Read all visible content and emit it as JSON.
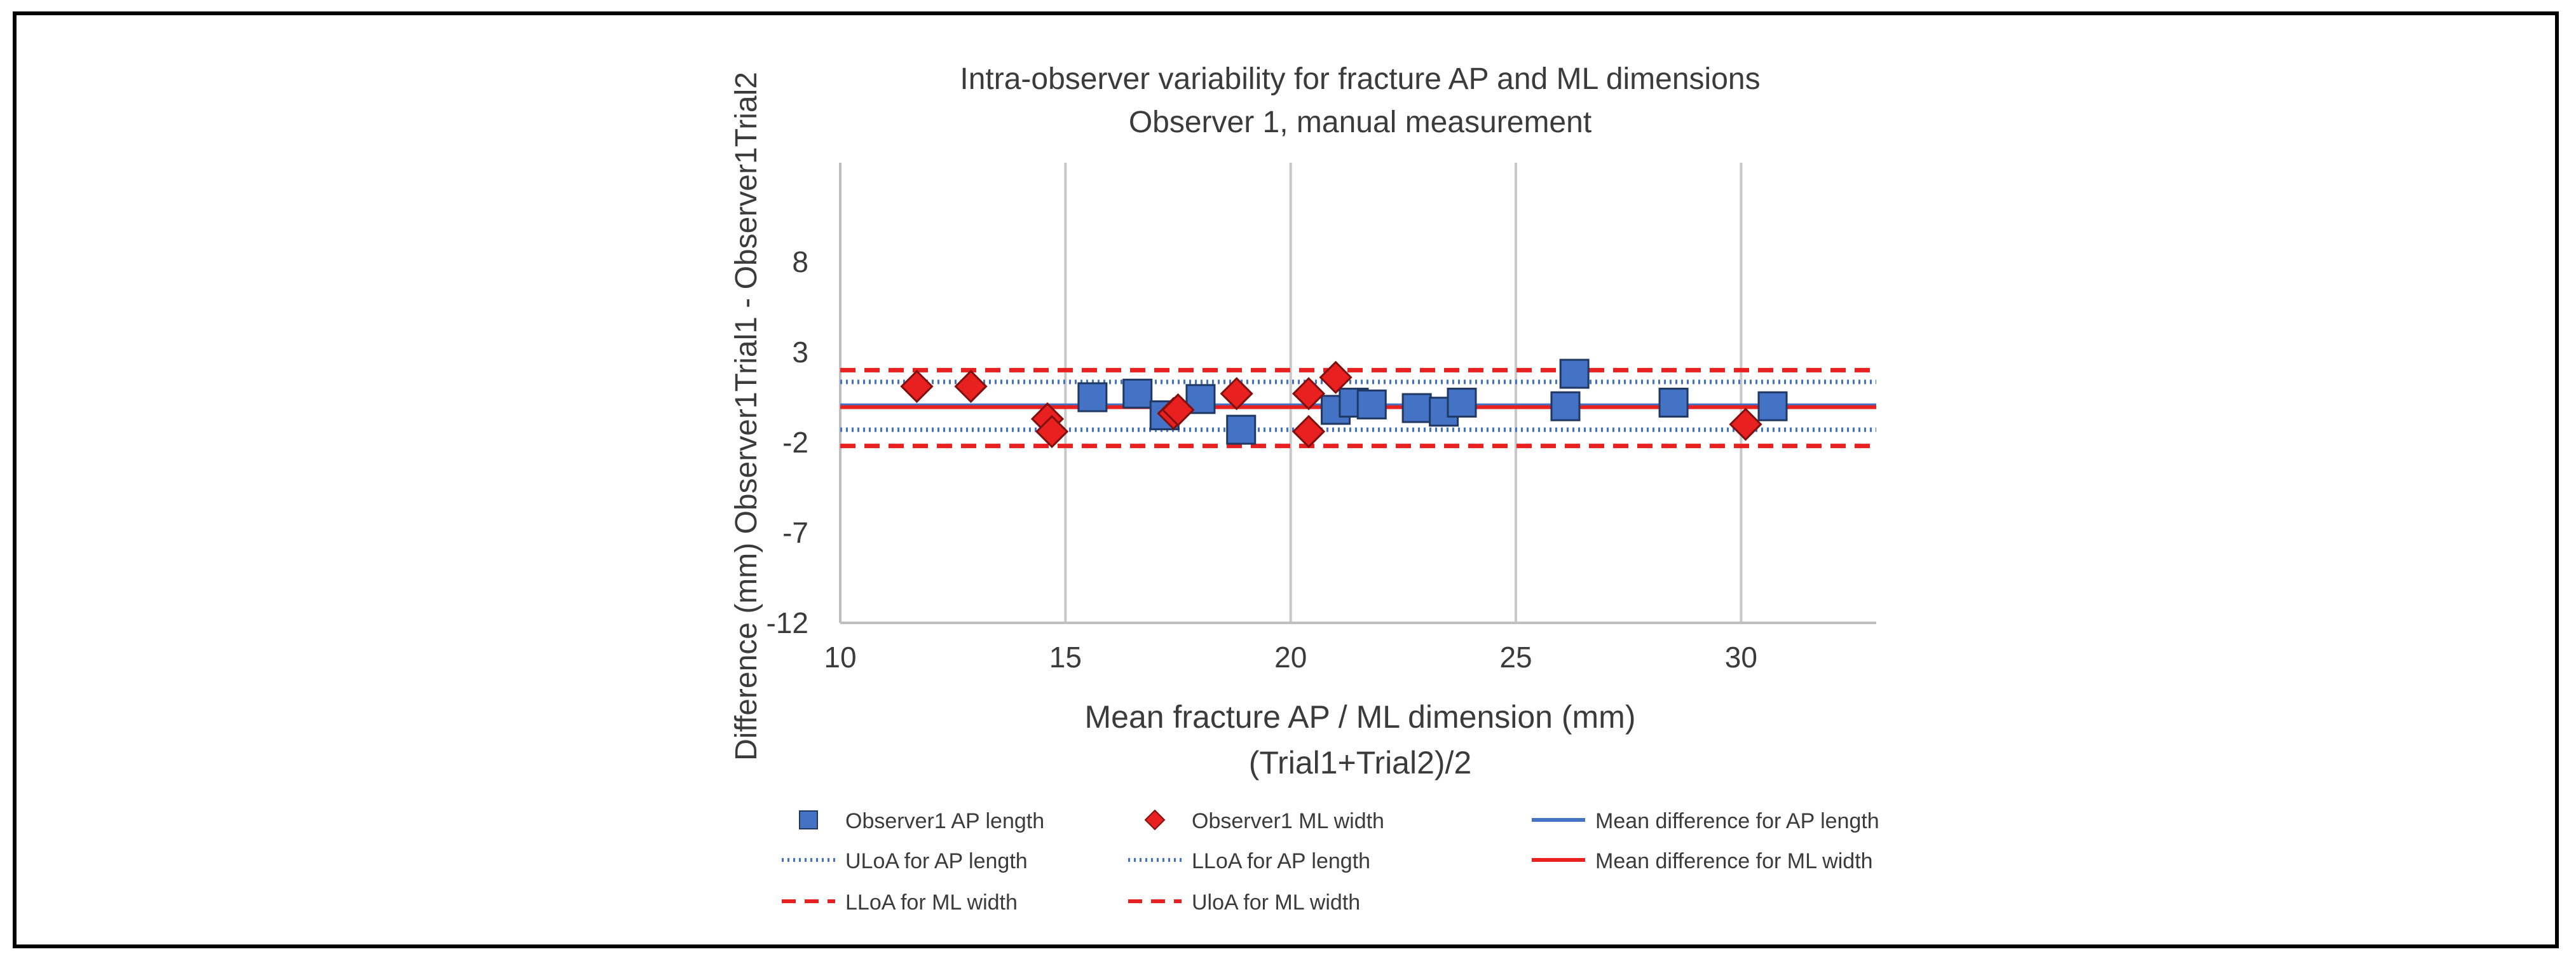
{
  "chart_data": {
    "type": "scatter",
    "title": "Intra-observer variability for fracture AP and ML dimensions",
    "subtitle": "Observer 1, manual measurement",
    "xlabel": "Mean fracture AP / ML dimension (mm)",
    "xlabel2": "(Trial1+Trial2)/2",
    "ylabel": "Difference (mm) Observer1Trial1 - Observer1Trial2",
    "xlim": [
      10,
      33
    ],
    "ylim": [
      -12,
      13
    ],
    "x_ticks": [
      10,
      15,
      20,
      25,
      30
    ],
    "y_ticks": [
      -12,
      -7,
      -2,
      3,
      8
    ],
    "x_tick_labels": [
      "10",
      "15",
      "20",
      "25",
      "30"
    ],
    "y_tick_labels": [
      "-12",
      "-7",
      "-2",
      "3",
      "8"
    ],
    "vertical_grid": true,
    "colors": {
      "ap": "#4472C4",
      "ap_edge": "#1F3864",
      "ml": "#E8201F",
      "ml_edge": "#7F1010",
      "grid": "#C8C8C8",
      "axis": "#BFBFBF",
      "text": "#3B3B3B"
    },
    "series": [
      {
        "name": "Observer1 AP length",
        "marker": "square",
        "points": [
          {
            "x": 15.6,
            "y": 0.5
          },
          {
            "x": 16.6,
            "y": 0.7
          },
          {
            "x": 17.2,
            "y": -0.5
          },
          {
            "x": 18.0,
            "y": 0.4
          },
          {
            "x": 18.9,
            "y": -1.3
          },
          {
            "x": 21.0,
            "y": -0.2
          },
          {
            "x": 21.4,
            "y": 0.2
          },
          {
            "x": 21.8,
            "y": 0.1
          },
          {
            "x": 22.8,
            "y": -0.1
          },
          {
            "x": 23.4,
            "y": -0.3
          },
          {
            "x": 23.8,
            "y": 0.2
          },
          {
            "x": 26.1,
            "y": 0.0
          },
          {
            "x": 26.3,
            "y": 1.8
          },
          {
            "x": 28.5,
            "y": 0.2
          },
          {
            "x": 30.7,
            "y": 0.0
          }
        ]
      },
      {
        "name": "Observer1 ML width",
        "marker": "diamond",
        "points": [
          {
            "x": 11.7,
            "y": 1.1
          },
          {
            "x": 12.9,
            "y": 1.1
          },
          {
            "x": 14.6,
            "y": -0.7
          },
          {
            "x": 14.7,
            "y": -1.4
          },
          {
            "x": 17.4,
            "y": -0.4
          },
          {
            "x": 17.5,
            "y": -0.2
          },
          {
            "x": 18.8,
            "y": 0.7
          },
          {
            "x": 20.4,
            "y": 0.7
          },
          {
            "x": 20.4,
            "y": -1.4
          },
          {
            "x": 21.0,
            "y": 1.6
          },
          {
            "x": 30.1,
            "y": -1.0
          }
        ]
      }
    ],
    "reference_lines": [
      {
        "name": "Mean difference for AP length",
        "y": 0.05,
        "color": "#4472C4",
        "style": "solid"
      },
      {
        "name": "ULoA for AP length",
        "y": 1.35,
        "color": "#4472C4",
        "style": "dotted"
      },
      {
        "name": "LLoA for AP length",
        "y": -1.3,
        "color": "#4472C4",
        "style": "dotted"
      },
      {
        "name": "Mean difference for ML width",
        "y": -0.05,
        "color": "#E8201F",
        "style": "solid"
      },
      {
        "name": "LLoA for ML width",
        "y": -2.2,
        "color": "#E8201F",
        "style": "dashed"
      },
      {
        "name": "UloA for ML width",
        "y": 2.0,
        "color": "#E8201F",
        "style": "dashed"
      }
    ],
    "legend": {
      "placement": "bottom",
      "entries": [
        {
          "label": "Observer1 AP length",
          "kind": "square",
          "color": "#4472C4"
        },
        {
          "label": "Observer1 ML width",
          "kind": "diamond",
          "color": "#E8201F"
        },
        {
          "label": "Mean difference for AP length",
          "kind": "solid",
          "color": "#4472C4"
        },
        {
          "label": "ULoA for AP length",
          "kind": "dotted",
          "color": "#4472C4"
        },
        {
          "label": "LLoA for AP length",
          "kind": "dotted",
          "color": "#4472C4"
        },
        {
          "label": "Mean difference for ML width",
          "kind": "solid",
          "color": "#E8201F"
        },
        {
          "label": "LLoA for ML width",
          "kind": "dashed",
          "color": "#E8201F"
        },
        {
          "label": "UloA for ML width",
          "kind": "dashed",
          "color": "#E8201F"
        }
      ]
    }
  }
}
